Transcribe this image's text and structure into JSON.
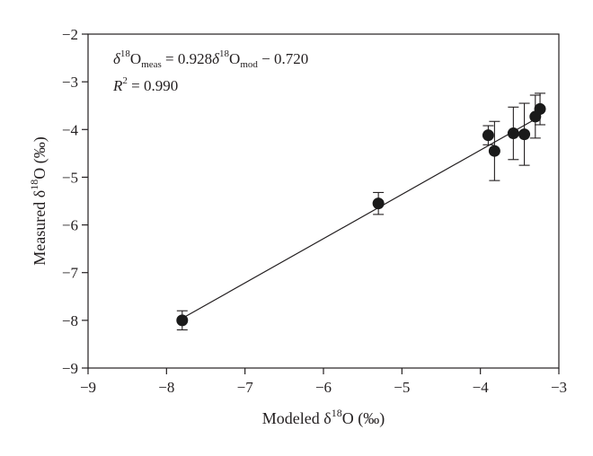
{
  "chart_data": {
    "type": "scatter",
    "xlim": [
      -9,
      -3
    ],
    "ylim": [
      -9,
      -2
    ],
    "x_ticks": [
      -9,
      -8,
      -7,
      -6,
      -5,
      -4,
      -3
    ],
    "y_ticks": [
      -9,
      -8,
      -7,
      -6,
      -5,
      -4,
      -3,
      -2
    ],
    "x_tick_labels": [
      "−9",
      "−8",
      "−7",
      "−6",
      "−5",
      "−4",
      "−3"
    ],
    "y_tick_labels": [
      "−9",
      "−8",
      "−7",
      "−6",
      "−5",
      "−4",
      "−3",
      "−2"
    ],
    "xlabel": {
      "pre": "Modeled δ",
      "sup": "18",
      "post": "O (‰)"
    },
    "ylabel": {
      "pre": "Measured δ",
      "sup": "18",
      "post": "O (‰)"
    },
    "grid": false,
    "points": [
      {
        "x": -7.8,
        "y": -8.0,
        "err": 0.2
      },
      {
        "x": -5.3,
        "y": -5.55,
        "err": 0.23
      },
      {
        "x": -3.9,
        "y": -4.12,
        "err": 0.2
      },
      {
        "x": -3.82,
        "y": -4.45,
        "err": 0.62
      },
      {
        "x": -3.58,
        "y": -4.08,
        "err": 0.55
      },
      {
        "x": -3.44,
        "y": -4.1,
        "err": 0.65
      },
      {
        "x": -3.3,
        "y": -3.73,
        "err": 0.45
      },
      {
        "x": -3.24,
        "y": -3.57,
        "err": 0.33
      }
    ],
    "fit": {
      "slope": 0.928,
      "intercept": -0.72,
      "x_range": [
        -7.8,
        -3.24
      ]
    },
    "equation": {
      "delta": "δ",
      "sup": "18",
      "o": "O",
      "sub_meas": "meas",
      "equals": " = 0.928",
      "sub_mod": "mod",
      "tail": " − 0.720"
    },
    "r2": {
      "r": "R",
      "sup": "2",
      "rest": " = 0.990"
    }
  }
}
